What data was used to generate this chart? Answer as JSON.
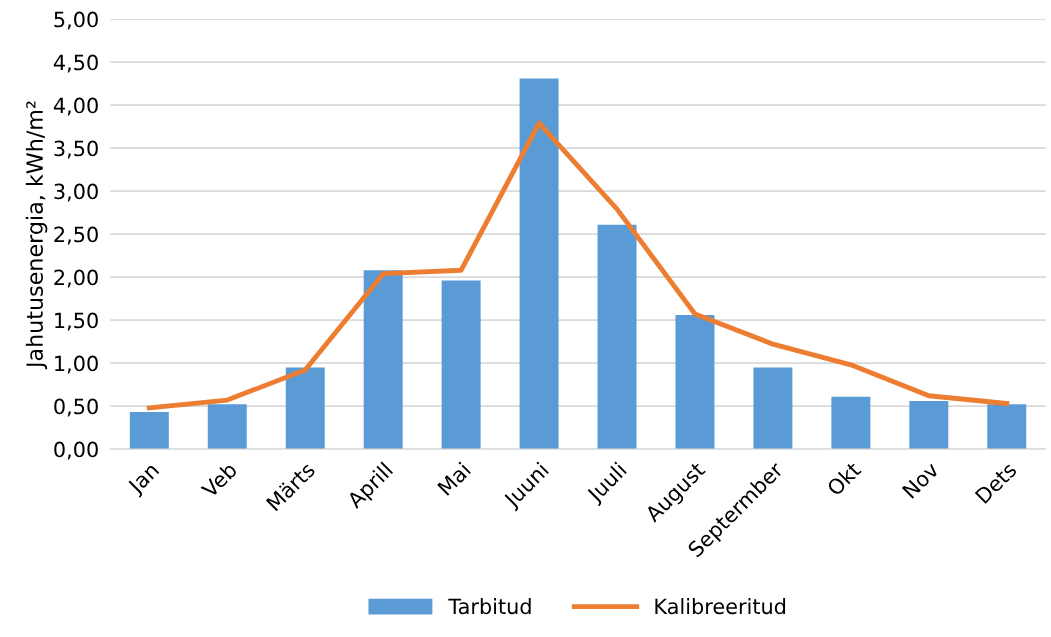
{
  "chart_data": {
    "type": "bar",
    "ylabel": "Jahutusenergia, kWh/m²",
    "categories": [
      "Jan",
      "Veb",
      "Märts",
      "Aprill",
      "Mai",
      "Juuni",
      "Juuli",
      "August",
      "Septermber",
      "Okt",
      "Nov",
      "Dets"
    ],
    "series": [
      {
        "name": "Tarbitud",
        "color": "#5b9bd5",
        "values": [
          0.43,
          0.52,
          0.95,
          2.08,
          1.96,
          4.31,
          2.61,
          1.56,
          0.95,
          0.61,
          0.56,
          0.52
        ]
      },
      {
        "name": "Kalibreeritud",
        "type": "line",
        "color": "#ed7d31",
        "values": [
          0.48,
          0.57,
          0.92,
          2.04,
          2.08,
          3.79,
          2.79,
          1.57,
          1.22,
          0.98,
          0.62,
          0.53
        ]
      }
    ],
    "ylim": [
      0,
      5
    ],
    "yticks": [
      {
        "value": 0,
        "label": "0,00"
      },
      {
        "value": 0.5,
        "label": "0,50"
      },
      {
        "value": 1,
        "label": "1,00"
      },
      {
        "value": 1.5,
        "label": "1,50"
      },
      {
        "value": 2,
        "label": "2,00"
      },
      {
        "value": 2.5,
        "label": "2,50"
      },
      {
        "value": 3,
        "label": "3,00"
      },
      {
        "value": 3.5,
        "label": "3,50"
      },
      {
        "value": 4,
        "label": "4,00"
      },
      {
        "value": 4.5,
        "label": "4,50"
      },
      {
        "value": 5,
        "label": "5,00"
      }
    ],
    "grid": "y",
    "legend": "bottom",
    "marker": "none",
    "line_style": "solid"
  }
}
